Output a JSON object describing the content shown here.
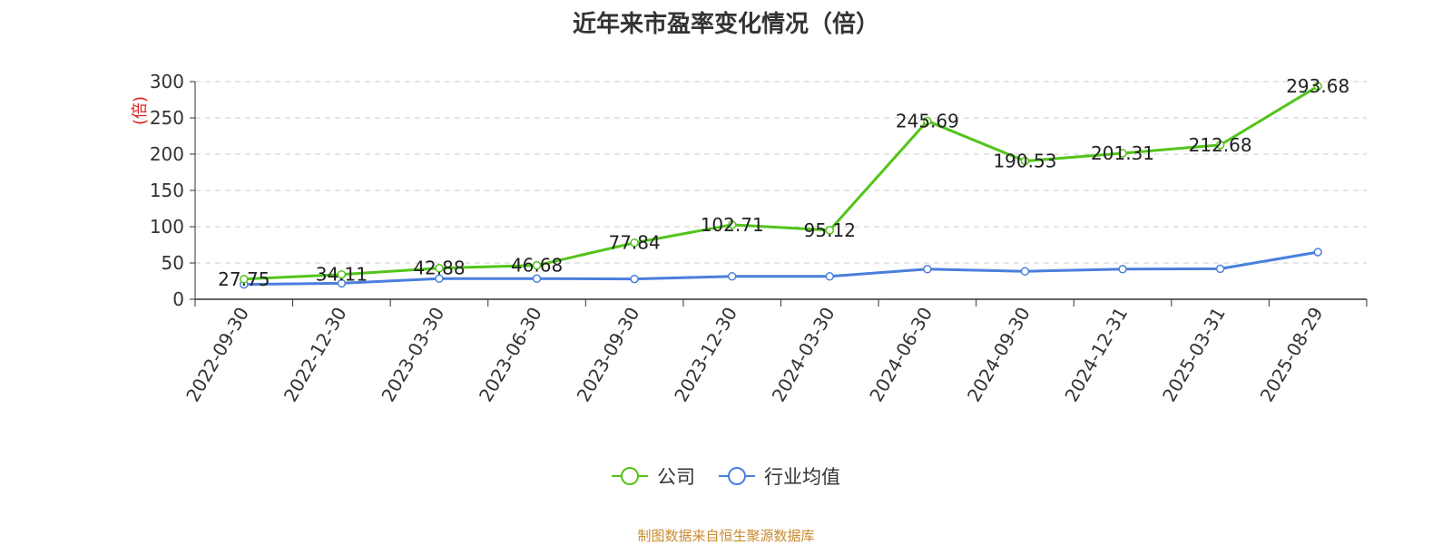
{
  "chart_data": {
    "type": "line",
    "title": "近年来市盈率变化情况（倍）",
    "ylabel": "(倍)",
    "xlabel": "",
    "ylim": [
      0,
      300
    ],
    "yticks": [
      0,
      50,
      100,
      150,
      200,
      250,
      300
    ],
    "grid": true,
    "legend_position": "bottom",
    "categories": [
      "2022-09-30",
      "2022-12-30",
      "2023-03-30",
      "2023-06-30",
      "2023-09-30",
      "2023-12-30",
      "2024-03-30",
      "2024-06-30",
      "2024-09-30",
      "2024-12-31",
      "2025-03-31",
      "2025-08-29"
    ],
    "series": [
      {
        "name": "公司",
        "color": "#52c41a",
        "values": [
          27.75,
          34.11,
          42.88,
          46.68,
          77.84,
          102.71,
          95.12,
          245.69,
          190.53,
          201.31,
          212.68,
          293.68
        ],
        "data_labels": [
          "27.75",
          "34.11",
          "42.88",
          "46.68",
          "77.84",
          "102.71",
          "95.12",
          "245.69",
          "190.53",
          "201.31",
          "212.68",
          "293.68"
        ]
      },
      {
        "name": "行业均值",
        "color": "#4a7fdc",
        "values": [
          20.5,
          22.0,
          28.5,
          28.5,
          28.0,
          31.5,
          31.5,
          41.5,
          38.5,
          41.5,
          42.0,
          65.0
        ]
      }
    ]
  },
  "footer": {
    "source": "制图数据来自恒生聚源数据库"
  }
}
